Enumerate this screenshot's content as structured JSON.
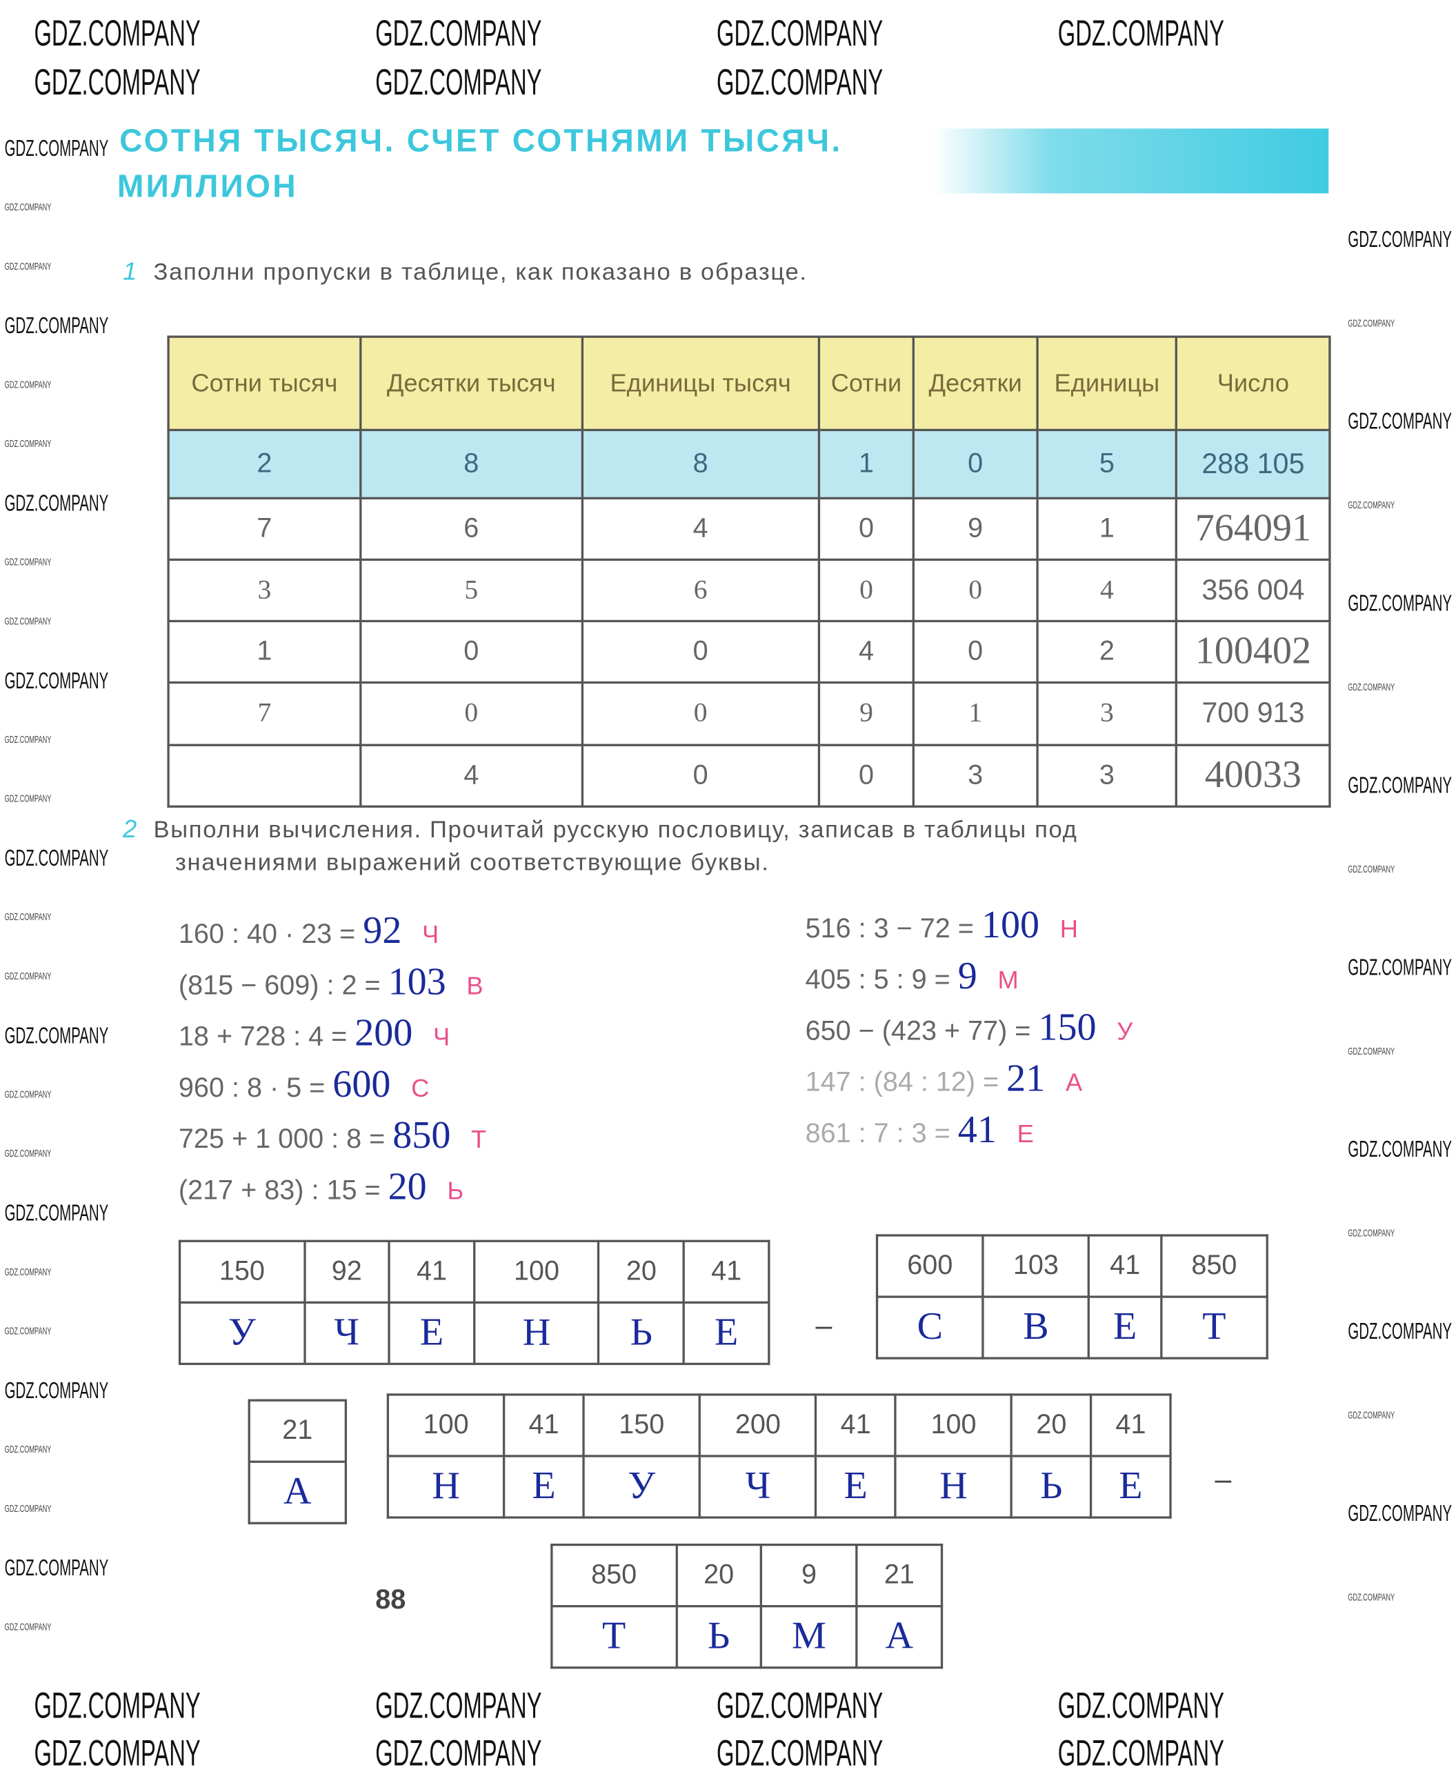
{
  "header": {
    "title_line1": "СОТНЯ ТЫСЯЧ. СЧЕТ СОТНЯМИ ТЫСЯЧ.",
    "title_line2": "МИЛЛИОН",
    "accent": "#3cc7dc"
  },
  "watermark": "GDZ.COMPANY",
  "task1": {
    "number": "1",
    "text": "Заполни пропуски в таблице, как показано в образце.",
    "columns": [
      "Сотни тысяч",
      "Десятки тысяч",
      "Единицы тысяч",
      "Сотни",
      "Десятки",
      "Единицы",
      "Число"
    ],
    "rows": [
      {
        "cells": [
          "2",
          "8",
          "8",
          "1",
          "0",
          "5",
          "288 105"
        ],
        "filled": []
      },
      {
        "cells": [
          "7",
          "6",
          "4",
          "0",
          "9",
          "1",
          "764091"
        ],
        "filled": [
          6
        ]
      },
      {
        "cells": [
          "3",
          "5",
          "6",
          "0",
          "0",
          "4",
          "356 004"
        ],
        "filled": [
          0,
          1,
          2,
          3,
          4,
          5
        ]
      },
      {
        "cells": [
          "1",
          "0",
          "0",
          "4",
          "0",
          "2",
          "100402"
        ],
        "filled": [
          6
        ]
      },
      {
        "cells": [
          "7",
          "0",
          "0",
          "9",
          "1",
          "3",
          "700 913"
        ],
        "filled": [
          0,
          1,
          2,
          3,
          4,
          5
        ]
      },
      {
        "cells": [
          "",
          "4",
          "0",
          "0",
          "3",
          "3",
          "40033"
        ],
        "filled": [
          6
        ]
      }
    ]
  },
  "task2": {
    "number": "2",
    "text_line1": "Выполни вычисления. Прочитай русскую пословицу, записав в таблицы под",
    "text_line2": "значениями выражений соответствующие буквы.",
    "left": [
      {
        "expr": "160 : 40 · 23 =",
        "answer": "92",
        "letter": "Ч"
      },
      {
        "expr": "(815 − 609) : 2 =",
        "answer": "103",
        "letter": "В"
      },
      {
        "expr": "18 + 728 : 4 =",
        "answer": "200",
        "letter": "Ч"
      },
      {
        "expr": "960 : 8 · 5 =",
        "answer": "600",
        "letter": "С"
      },
      {
        "expr": "725 + 1 000 : 8 =",
        "answer": "850",
        "letter": "Т"
      },
      {
        "expr": "(217 + 83) : 15 =",
        "answer": "20",
        "letter": "Ь"
      }
    ],
    "right": [
      {
        "expr": "516 : 3 − 72 =",
        "answer": "100",
        "letter": "Н"
      },
      {
        "expr": "405 : 5 : 9 =",
        "answer": "9",
        "letter": "М"
      },
      {
        "expr": "650 − (423 + 77) =",
        "answer": "150",
        "letter": "У"
      },
      {
        "expr": "147 : (84 : 12) =",
        "answer": "21",
        "letter": "А"
      },
      {
        "expr": "861 : 7 : 3 =",
        "answer": "41",
        "letter": "Е"
      }
    ],
    "tables": [
      {
        "numbers": [
          "150",
          "92",
          "41",
          "100",
          "20",
          "41"
        ],
        "letters": [
          "У",
          "Ч",
          "Е",
          "Н",
          "Ь",
          "Е"
        ]
      },
      {
        "numbers": [
          "600",
          "103",
          "41",
          "850"
        ],
        "letters": [
          "С",
          "В",
          "Е",
          "Т"
        ]
      },
      {
        "numbers": [
          "21"
        ],
        "letters": [
          "А"
        ]
      },
      {
        "numbers": [
          "100",
          "41",
          "150",
          "200",
          "41",
          "100",
          "20",
          "41"
        ],
        "letters": [
          "Н",
          "Е",
          "У",
          "Ч",
          "Е",
          "Н",
          "Ь",
          "Е"
        ]
      },
      {
        "numbers": [
          "850",
          "20",
          "9",
          "21"
        ],
        "letters": [
          "Т",
          "Ь",
          "М",
          "А"
        ]
      }
    ],
    "dash": "–"
  },
  "page_number": "88"
}
